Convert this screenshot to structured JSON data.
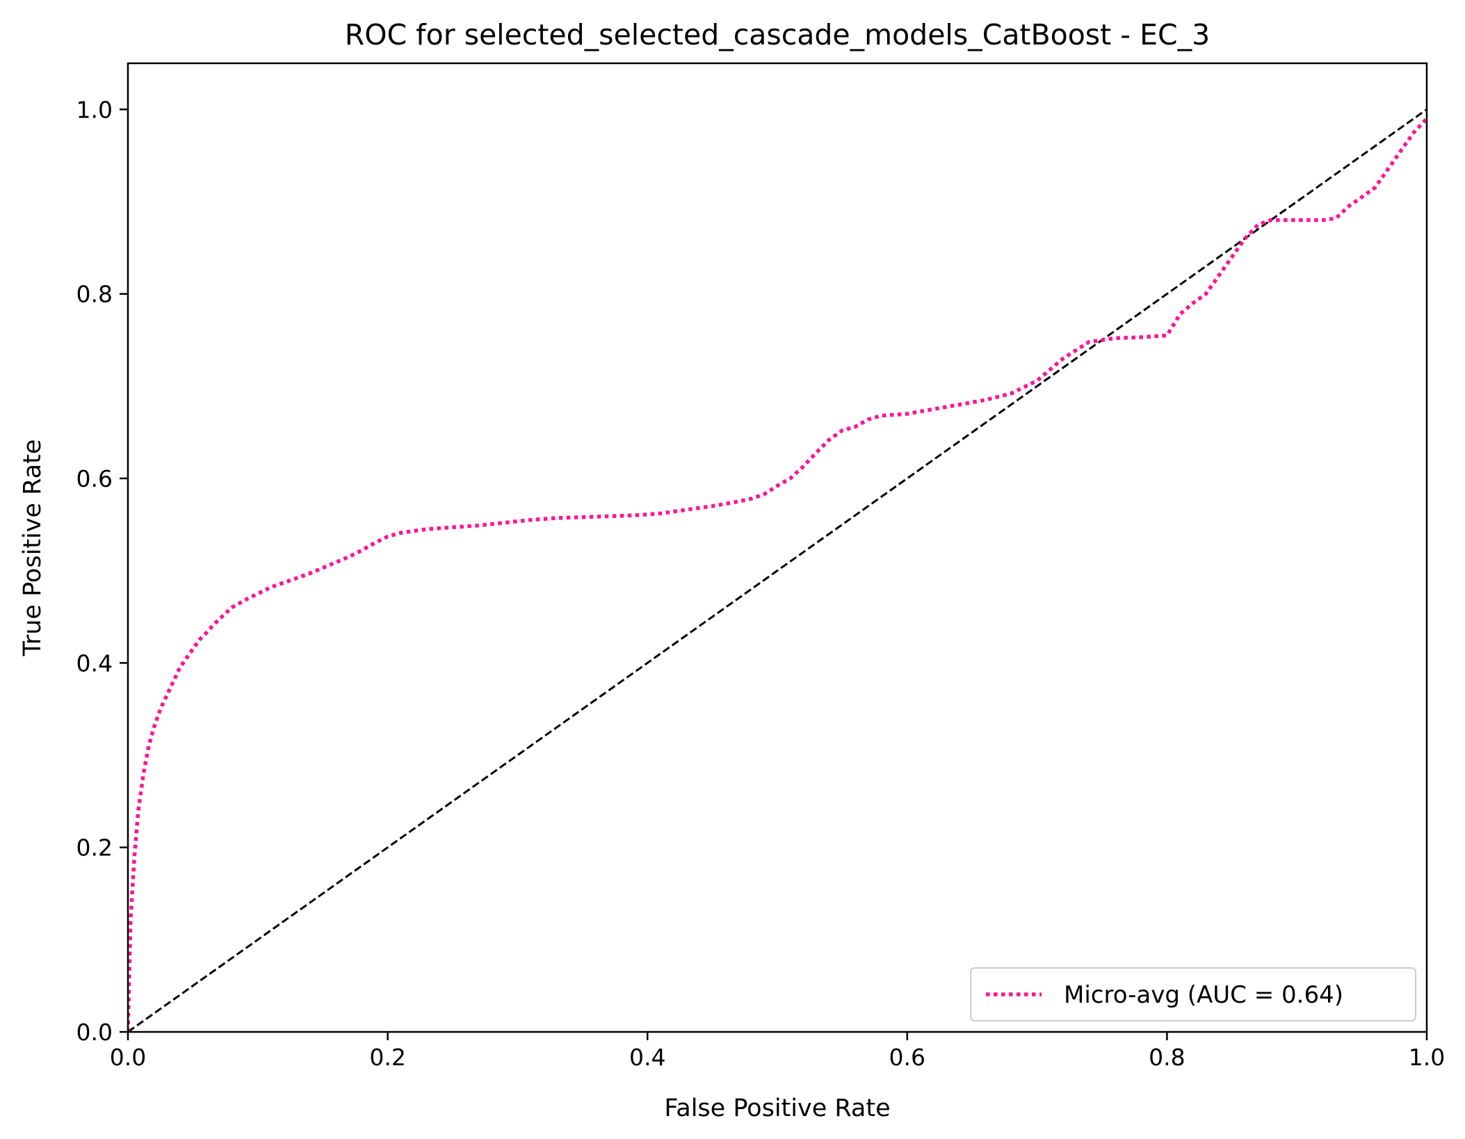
{
  "chart_data": {
    "type": "line",
    "title": "ROC for selected_selected_cascade_models_CatBoost - EC_3",
    "xlabel": "False Positive Rate",
    "ylabel": "True Positive Rate",
    "xlim": [
      0.0,
      1.0
    ],
    "ylim": [
      0.0,
      1.05
    ],
    "xticks": [
      "0.0",
      "0.2",
      "0.4",
      "0.6",
      "0.8",
      "1.0"
    ],
    "yticks": [
      "0.0",
      "0.2",
      "0.4",
      "0.6",
      "0.8",
      "1.0"
    ],
    "grid": false,
    "legend_position": "lower-right",
    "series": [
      {
        "name": "Micro-avg (AUC = 0.64)",
        "color": "#ff1493",
        "style": "dotted",
        "x": [
          0.0,
          0.002,
          0.005,
          0.008,
          0.012,
          0.016,
          0.02,
          0.025,
          0.03,
          0.035,
          0.04,
          0.045,
          0.05,
          0.055,
          0.06,
          0.065,
          0.07,
          0.08,
          0.09,
          0.1,
          0.11,
          0.12,
          0.13,
          0.14,
          0.15,
          0.16,
          0.17,
          0.18,
          0.19,
          0.2,
          0.21,
          0.22,
          0.23,
          0.25,
          0.27,
          0.29,
          0.31,
          0.33,
          0.35,
          0.37,
          0.39,
          0.41,
          0.43,
          0.45,
          0.47,
          0.48,
          0.49,
          0.5,
          0.51,
          0.52,
          0.53,
          0.54,
          0.55,
          0.56,
          0.57,
          0.58,
          0.59,
          0.6,
          0.62,
          0.64,
          0.66,
          0.68,
          0.7,
          0.72,
          0.74,
          0.76,
          0.78,
          0.8,
          0.81,
          0.82,
          0.83,
          0.84,
          0.85,
          0.86,
          0.87,
          0.88,
          0.89,
          0.9,
          0.91,
          0.92,
          0.93,
          0.94,
          0.95,
          0.96,
          0.97,
          0.98,
          0.99,
          1.0
        ],
        "y": [
          0.0,
          0.12,
          0.19,
          0.24,
          0.28,
          0.31,
          0.33,
          0.35,
          0.365,
          0.38,
          0.395,
          0.405,
          0.415,
          0.425,
          0.432,
          0.44,
          0.447,
          0.46,
          0.468,
          0.475,
          0.482,
          0.487,
          0.492,
          0.497,
          0.503,
          0.509,
          0.515,
          0.522,
          0.53,
          0.537,
          0.541,
          0.543,
          0.545,
          0.547,
          0.549,
          0.552,
          0.555,
          0.557,
          0.558,
          0.559,
          0.56,
          0.562,
          0.566,
          0.57,
          0.575,
          0.578,
          0.583,
          0.592,
          0.6,
          0.613,
          0.628,
          0.642,
          0.652,
          0.656,
          0.664,
          0.668,
          0.669,
          0.67,
          0.675,
          0.68,
          0.685,
          0.692,
          0.706,
          0.73,
          0.748,
          0.752,
          0.753,
          0.755,
          0.778,
          0.79,
          0.8,
          0.82,
          0.84,
          0.86,
          0.875,
          0.88,
          0.88,
          0.88,
          0.88,
          0.88,
          0.882,
          0.895,
          0.905,
          0.915,
          0.935,
          0.955,
          0.975,
          0.99
        ]
      },
      {
        "name": "",
        "color": "#000000",
        "style": "dashed",
        "x": [
          0.0,
          1.0
        ],
        "y": [
          0.0,
          1.0
        ]
      }
    ]
  }
}
